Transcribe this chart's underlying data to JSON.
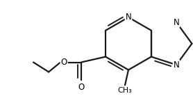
{
  "background_color": "#ffffff",
  "line_color": "#1a1a1a",
  "line_width": 1.6,
  "font_size": 8.5,
  "figsize": [
    2.78,
    1.38
  ],
  "dpi": 100,
  "xlim": [
    0,
    278
  ],
  "ylim": [
    0,
    138
  ]
}
